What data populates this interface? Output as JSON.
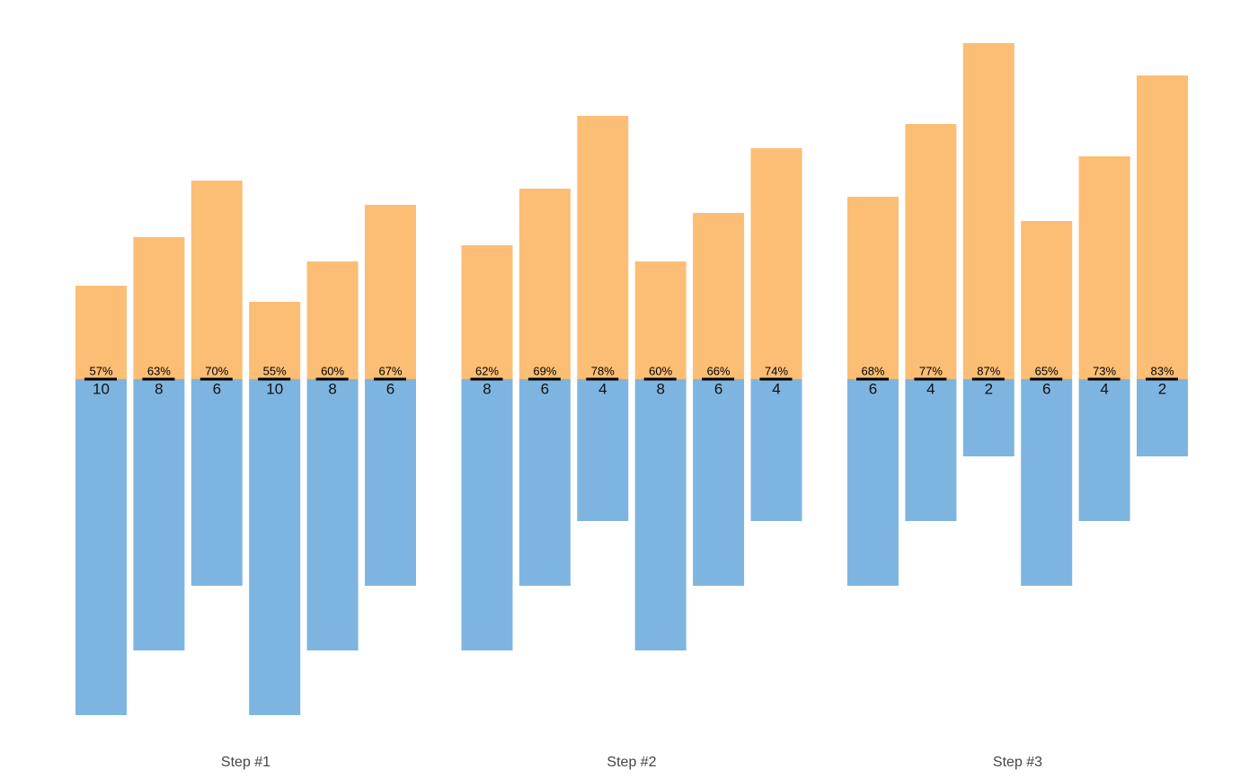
{
  "chart_data": {
    "type": "diverging-bar",
    "groups": [
      "Step #1",
      "Step #2",
      "Step #3"
    ],
    "bars_per_group": 6,
    "series": [
      {
        "color": "#fbbe74",
        "direction": "up",
        "values": [
          2.5,
          4,
          5.75,
          2,
          3.25,
          5,
          3.75,
          5.5,
          7.75,
          3.25,
          4.75,
          6.75,
          5.25,
          7.5,
          10,
          4.5,
          6.5,
          9
        ]
      },
      {
        "color": "#7eb5e0",
        "direction": "down",
        "values": [
          10,
          8,
          6,
          10,
          8,
          6,
          8,
          6,
          4,
          8,
          6,
          4,
          6,
          4,
          2,
          6,
          4,
          2
        ]
      }
    ],
    "percent": {
      "values": [
        57,
        63,
        70,
        55,
        60,
        67,
        62,
        69,
        78,
        60,
        66,
        74,
        68,
        77,
        87,
        65,
        73,
        83
      ],
      "value_labels": [
        "57%",
        "63%",
        "70%",
        "55%",
        "60%",
        "67%",
        "62%",
        "69%",
        "78%",
        "60%",
        "66%",
        "74%",
        "68%",
        "77%",
        "87%",
        "65%",
        "73%",
        "83%"
      ]
    }
  }
}
